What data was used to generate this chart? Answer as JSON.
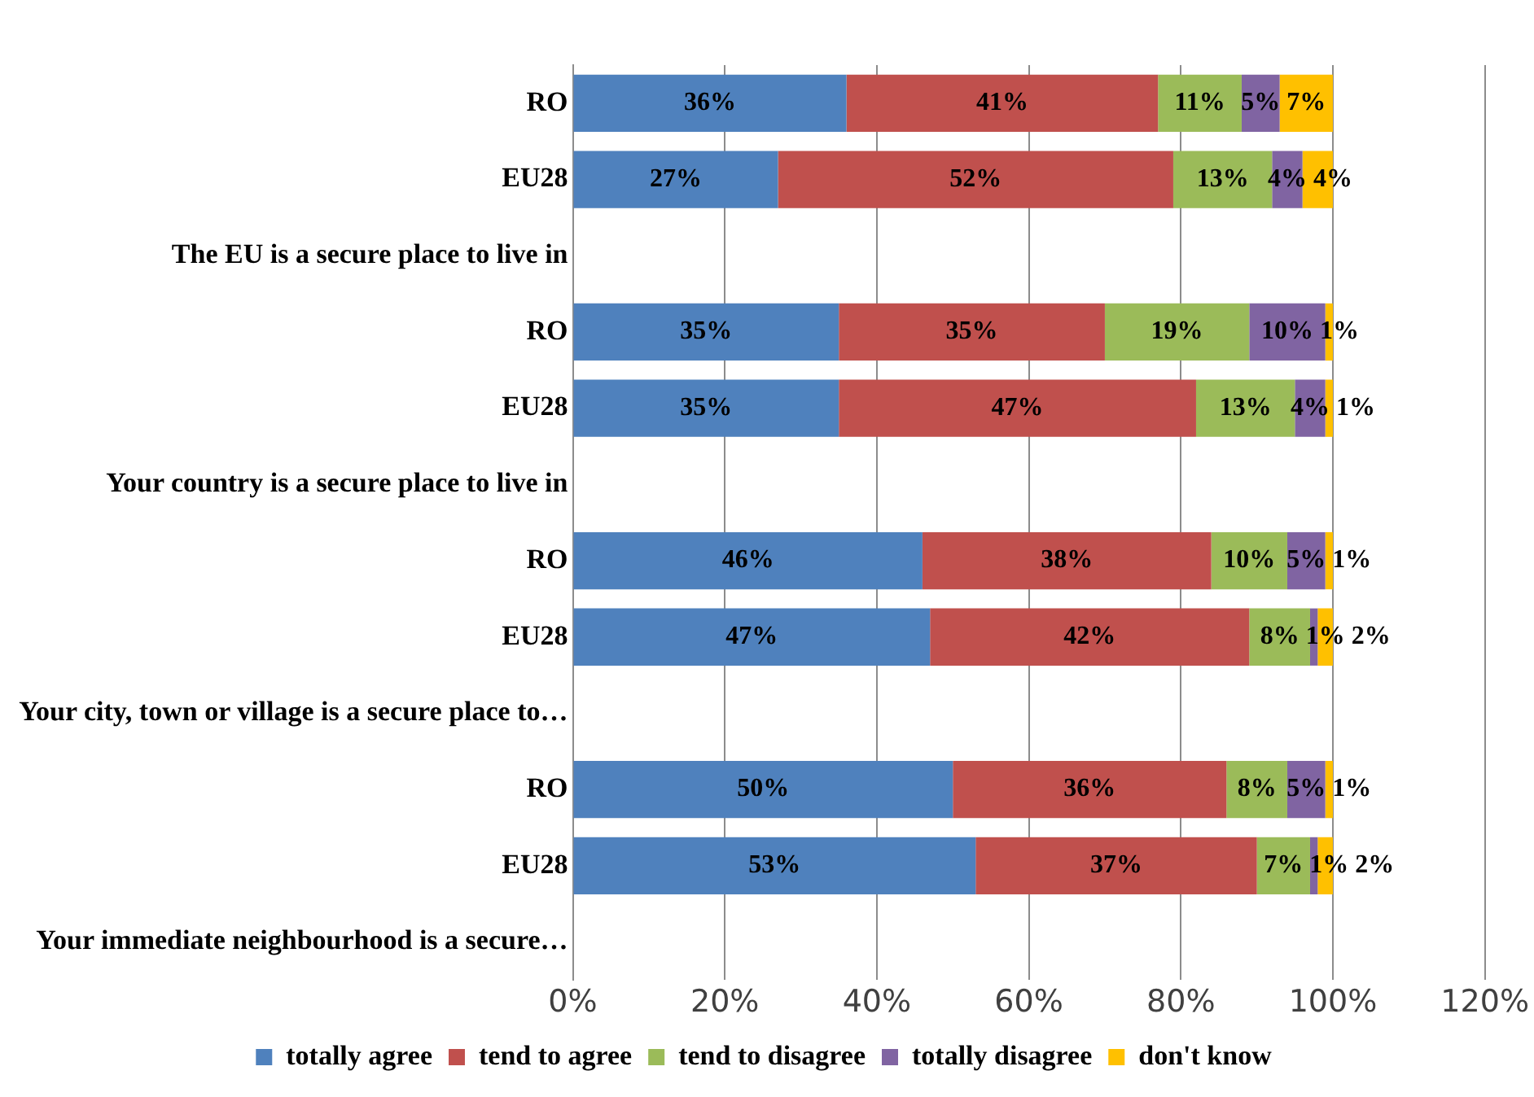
{
  "chart_data": {
    "type": "bar",
    "orientation": "horizontal",
    "stacked": true,
    "categories": [
      "RO",
      "EU28",
      "The EU is a secure place to live in",
      "RO",
      "EU28",
      "Your country is a secure place to live in",
      "RO",
      "EU28",
      "Your city, town or village is a secure place to…",
      "RO",
      "EU28",
      "Your immediate neighbourhood is a secure…"
    ],
    "series": [
      {
        "name": "totally agree",
        "color": "#4f81bd",
        "values": [
          36,
          27,
          null,
          35,
          35,
          null,
          46,
          47,
          null,
          50,
          53,
          null
        ],
        "value_labels": [
          "36%",
          "27%",
          null,
          "35%",
          "35%",
          null,
          "46%",
          "47%",
          null,
          "50%",
          "53%",
          null
        ]
      },
      {
        "name": "tend to agree",
        "color": "#c0504d",
        "values": [
          41,
          52,
          null,
          35,
          47,
          null,
          38,
          42,
          null,
          36,
          37,
          null
        ],
        "value_labels": [
          "41%",
          "52%",
          null,
          "35%",
          "47%",
          null,
          "38%",
          "42%",
          null,
          "36%",
          "37%",
          null
        ]
      },
      {
        "name": "tend to disagree",
        "color": "#9bbb59",
        "values": [
          11,
          13,
          null,
          19,
          13,
          null,
          10,
          8,
          null,
          8,
          7,
          null
        ],
        "value_labels": [
          "11%",
          "13%",
          null,
          "19%",
          "13%",
          null,
          "10%",
          "8%",
          null,
          "8%",
          "7%",
          null
        ]
      },
      {
        "name": "totally disagree",
        "color": "#8064a2",
        "values": [
          5,
          4,
          null,
          10,
          4,
          null,
          5,
          1,
          null,
          5,
          1,
          null
        ],
        "value_labels": [
          "5%",
          "4%",
          null,
          "10%",
          "4%",
          null,
          "5%",
          "1%",
          null,
          "5%",
          "1%",
          null
        ]
      },
      {
        "name": "don't know",
        "color": "#ffc000",
        "values": [
          7,
          4,
          null,
          1,
          1,
          null,
          1,
          2,
          null,
          1,
          2,
          null
        ],
        "value_labels": [
          "7%",
          "4%",
          null,
          "1%",
          "1%",
          null,
          "1%",
          "2%",
          null,
          "1%",
          "2%",
          null
        ]
      }
    ],
    "xlim": [
      0,
      120
    ],
    "xticks": [
      {
        "value": 0,
        "label": "0%"
      },
      {
        "value": 20,
        "label": "20%"
      },
      {
        "value": 40,
        "label": "40%"
      },
      {
        "value": 60,
        "label": "60%"
      },
      {
        "value": 80,
        "label": "80%"
      },
      {
        "value": 100,
        "label": "100%"
      },
      {
        "value": 120,
        "label": "120%"
      }
    ],
    "grid": "x",
    "legend": "bottom"
  }
}
